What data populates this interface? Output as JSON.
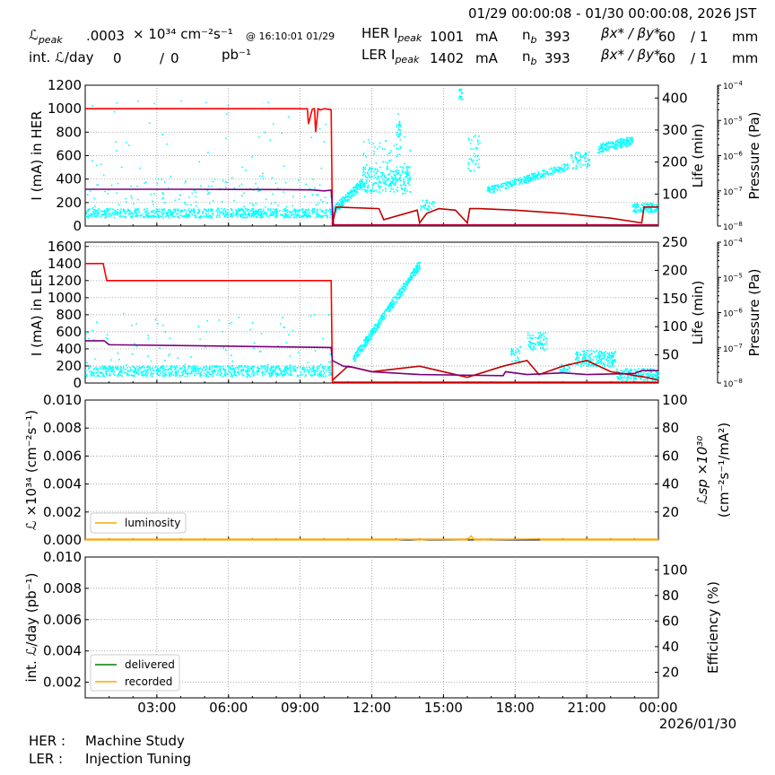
{
  "header": {
    "date_range": "01/29 00:00:08 - 01/30 00:00:08, 2026 JST",
    "lpeak_label": "ℒ",
    "lpeak_sub": "peak",
    "lpeak_value": ".0003",
    "lpeak_unit": "× 10³⁴ cm⁻²s⁻¹",
    "lpeak_time": "@ 16:10:01 01/29",
    "intl_label": "int. ℒ/day",
    "intl_value1": "0",
    "intl_slash": "/",
    "intl_value2": "0",
    "intl_unit": "pb⁻¹",
    "her_label": "HER I",
    "her_sub": "peak",
    "her_value": "1001",
    "her_unit": "mA",
    "her_nb_label": "n",
    "her_nb_sub": "b",
    "her_nb_value": "393",
    "her_beta_label": "βx* / βy*",
    "her_beta_x": "60",
    "her_beta_y": "/ 1",
    "her_beta_unit": "mm",
    "ler_label": "LER I",
    "ler_sub": "peak",
    "ler_value": "1402",
    "ler_unit": "mA",
    "ler_nb_label": "n",
    "ler_nb_sub": "b",
    "ler_nb_value": "393",
    "ler_beta_label": "βx* / βy*",
    "ler_beta_x": "60",
    "ler_beta_y": "/ 1",
    "ler_beta_unit": "mm"
  },
  "footer": {
    "her_label": "HER :",
    "her_status": "Machine Study",
    "ler_label": "LER :",
    "ler_status": "Injection Tuning"
  },
  "colors": {
    "current": "#ff0000",
    "current_dark": "#c00000",
    "life": "#7a007a",
    "pressure": "#00ffff",
    "luminosity": "#ffa500",
    "delivered": "#008000",
    "recorded": "#ffa500",
    "grid": "#888888"
  },
  "chart_data": [
    {
      "type": "line",
      "panel": "her",
      "ylabel": "I (mA) in HER",
      "ylim": [
        0,
        1200
      ],
      "yticks": [
        "0",
        "200",
        "400",
        "600",
        "800",
        "1000",
        "1200"
      ],
      "ylabel_right": "Life (min)",
      "ylim_right": [
        0,
        440
      ],
      "yticks_right": [
        "100",
        "200",
        "300",
        "400"
      ],
      "ylabel_right2": "Pressure (Pa)",
      "ylim_right2_exp": [
        -8,
        -4
      ],
      "xlim_hours": [
        0,
        24
      ],
      "grid": true,
      "series": [
        {
          "role": "current",
          "x": [
            0,
            9.0,
            9.15,
            9.3,
            9.35,
            9.5,
            9.55,
            9.6,
            9.65,
            9.75,
            9.85,
            10.0,
            10.2,
            10.3,
            10.35,
            12.1,
            12.2,
            13.9,
            14.0,
            15.6,
            15.7,
            15.9,
            16.0,
            17.5,
            20.0,
            22.0,
            24.0
          ],
          "y": [
            1000,
            1000,
            998,
            1000,
            870,
            990,
            1000,
            1000,
            800,
            1000,
            990,
            1000,
            995,
            990,
            10,
            10,
            10,
            10,
            10,
            10,
            10,
            10,
            10,
            10,
            10,
            10,
            10
          ]
        },
        {
          "role": "current_low",
          "x": [
            10.35,
            10.5,
            12.3,
            12.5,
            13.9,
            14.0,
            14.3,
            14.8,
            15.5,
            16.0,
            16.1,
            16.5,
            18.0,
            20.0,
            22.0,
            23.3,
            23.4,
            24.0
          ],
          "y": [
            5,
            60,
            55,
            20,
            50,
            10,
            40,
            55,
            50,
            10,
            55,
            55,
            50,
            40,
            25,
            10,
            60,
            60
          ]
        },
        {
          "role": "life",
          "x": [
            0,
            4,
            8,
            9.5,
            10.0,
            10.3,
            10.4,
            24.0
          ],
          "y": [
            115,
            115,
            114,
            113,
            110,
            112,
            2,
            2
          ]
        }
      ]
    },
    {
      "type": "line",
      "panel": "ler",
      "ylabel": "I (mA) in LER",
      "ylim": [
        0,
        1650
      ],
      "yticks": [
        "0",
        "200",
        "400",
        "600",
        "800",
        "1000",
        "1200",
        "1400",
        "1600"
      ],
      "ylabel_right": "Life (min)",
      "ylim_right": [
        0,
        250
      ],
      "yticks_right": [
        "50",
        "100",
        "150",
        "200",
        "250"
      ],
      "ylabel_right2": "Pressure (Pa)",
      "ylim_right2_exp": [
        -8,
        -4
      ],
      "xlim_hours": [
        0,
        24
      ],
      "grid": true,
      "series": [
        {
          "role": "current",
          "x": [
            0,
            0.75,
            0.9,
            10.3,
            10.35,
            24.0
          ],
          "y": [
            1400,
            1400,
            1200,
            1200,
            10,
            10
          ]
        },
        {
          "role": "current_low",
          "x": [
            10.35,
            11.0,
            12.0,
            14.0,
            16.0,
            17.5,
            18.5,
            19.0,
            20.0,
            21.0,
            22.0,
            23.5,
            24.0
          ],
          "y": [
            5,
            30,
            20,
            30,
            10,
            30,
            40,
            15,
            30,
            40,
            20,
            10,
            5
          ]
        },
        {
          "role": "life",
          "x": [
            0,
            0.8,
            1.0,
            5.0,
            10.3,
            10.35,
            10.8,
            11.2,
            12.0,
            14.0,
            17.5,
            17.6,
            18.5,
            20.0,
            21.0,
            23.0,
            23.3,
            24.0
          ],
          "y": [
            75,
            75,
            68,
            66,
            63,
            40,
            30,
            28,
            20,
            15,
            13,
            20,
            15,
            18,
            15,
            17,
            22,
            22
          ]
        }
      ]
    },
    {
      "type": "area",
      "panel": "luminosity",
      "ylabel": "ℒ ×10³⁴ (cm⁻²s⁻¹)",
      "ylim": [
        0,
        0.01
      ],
      "yticks": [
        "0.000",
        "0.002",
        "0.004",
        "0.006",
        "0.008",
        "0.010"
      ],
      "ylabel_right": "ℒsp ×10³⁰",
      "ylabel_right_unit": "(cm⁻²s⁻¹/mA²)",
      "ylim_right": [
        0,
        100
      ],
      "yticks_right": [
        "20",
        "40",
        "60",
        "80",
        "100"
      ],
      "legend": [
        "luminosity"
      ],
      "legend_position": "lower-left",
      "grid": true,
      "series": [
        {
          "name": "luminosity",
          "x": [
            0,
            10.3,
            13.0,
            13.5,
            14.0,
            14.5,
            16.0,
            16.15,
            16.3,
            16.5,
            19.0,
            19.1,
            24.0
          ],
          "y": [
            0,
            0,
            0,
            5e-05,
            0,
            4e-05,
            0,
            0.0003,
            0,
            0,
            8e-05,
            0,
            0
          ]
        }
      ]
    },
    {
      "type": "line",
      "panel": "integrated",
      "ylabel": "int. ℒ/day (pb⁻¹)",
      "ylim": [
        0.001,
        0.01
      ],
      "yticks": [
        "0.002",
        "0.004",
        "0.006",
        "0.008",
        "0.010"
      ],
      "ylabel_right": "Efficiency (%)",
      "ylim_right": [
        0,
        110
      ],
      "yticks_right": [
        "20",
        "40",
        "60",
        "80",
        "100"
      ],
      "legend": [
        "delivered",
        "recorded"
      ],
      "legend_position": "lower-left",
      "xticks": [
        "03:00",
        "06:00",
        "09:00",
        "12:00",
        "15:00",
        "18:00",
        "21:00",
        "00:00"
      ],
      "xdate": "2026/01/30",
      "grid": true,
      "series": [
        {
          "name": "delivered",
          "x": [],
          "y": []
        },
        {
          "name": "recorded",
          "x": [],
          "y": []
        }
      ]
    }
  ]
}
